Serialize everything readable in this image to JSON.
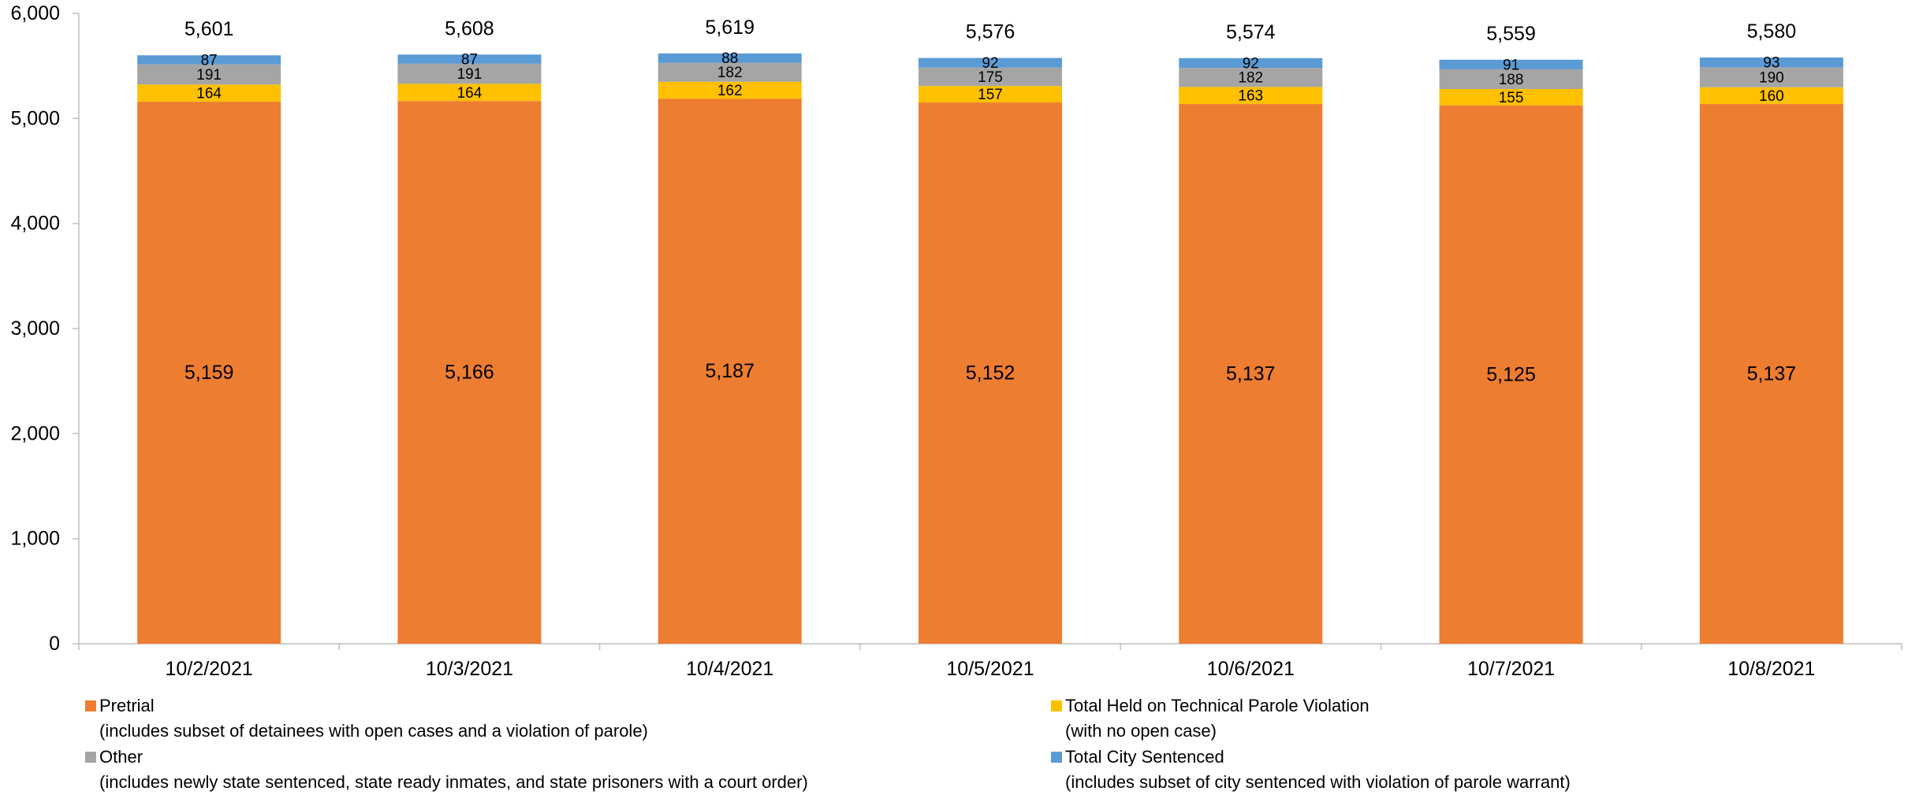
{
  "chart_data": {
    "type": "bar",
    "stacked": true,
    "categories": [
      "10/2/2021",
      "10/3/2021",
      "10/4/2021",
      "10/5/2021",
      "10/6/2021",
      "10/7/2021",
      "10/8/2021"
    ],
    "series": [
      {
        "name": "Pretrial",
        "note": "(includes subset of detainees with open cases and a violation of parole)",
        "color": "#ED7D31",
        "values": [
          5159,
          5166,
          5187,
          5152,
          5137,
          5125,
          5137
        ]
      },
      {
        "name": "Total Held on Technical Parole Violation",
        "note": "(with no open case)",
        "color": "#FFC000",
        "values": [
          164,
          164,
          162,
          157,
          163,
          155,
          160
        ]
      },
      {
        "name": "Other",
        "note": "(includes newly state sentenced, state ready inmates, and state prisoners with a court order)",
        "color": "#A5A5A5",
        "values": [
          191,
          191,
          182,
          175,
          182,
          188,
          190
        ]
      },
      {
        "name": "Total City Sentenced",
        "note": "(includes subset of city sentenced with violation of parole warrant)",
        "color": "#5B9BD5",
        "values": [
          87,
          87,
          88,
          92,
          92,
          91,
          93
        ]
      }
    ],
    "totals": [
      5601,
      5608,
      5619,
      5576,
      5574,
      5559,
      5580
    ],
    "ylim": [
      0,
      6000
    ],
    "yticks": [
      0,
      1000,
      2000,
      3000,
      4000,
      5000,
      6000
    ],
    "ytick_labels": [
      "0",
      "1,000",
      "2,000",
      "3,000",
      "4,000",
      "5,000",
      "6,000"
    ],
    "grid": false,
    "legend_position": "bottom"
  }
}
